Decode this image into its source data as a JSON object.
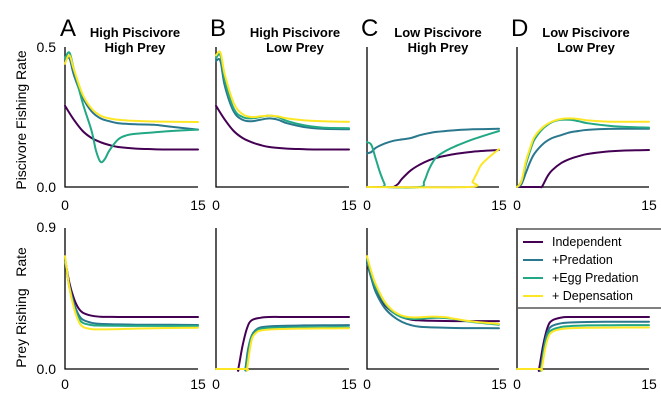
{
  "panels": [
    {
      "letter": "A",
      "title_line1": "High Piscivore",
      "title_line2": "High Prey"
    },
    {
      "letter": "B",
      "title_line1": "High Piscivore",
      "title_line2": "Low Prey"
    },
    {
      "letter": "C",
      "title_line1": "Low Piscivore",
      "title_line2": "High Prey"
    },
    {
      "letter": "D",
      "title_line1": "Low Piscivore",
      "title_line2": "Low Prey"
    }
  ],
  "ylabels": {
    "top": "Piscivore Fishing Rate",
    "bottom_line1": "Rate",
    "bottom_line2": "Prey Rishing"
  },
  "ticks": {
    "x_min": "0",
    "x_max": "15",
    "top_y_max": "0.5",
    "top_y_min": "0.0",
    "bottom_y_max": "0.9",
    "bottom_y_min": "0.0"
  },
  "legend": [
    {
      "label": "Independent",
      "color": "#440154"
    },
    {
      "label": "+Predation",
      "color": "#2a788e"
    },
    {
      "label": "+Egg Predation",
      "color": "#22a884"
    },
    {
      "label": "+ Depensation",
      "color": "#fde725"
    }
  ],
  "chart_data": [
    {
      "type": "line",
      "row": "top",
      "panel": "A",
      "xlim": [
        0,
        15
      ],
      "ylim": [
        0,
        0.5
      ],
      "ylabel": "Piscivore Fishing Rate",
      "series": [
        {
          "name": "Independent",
          "x": [
            0,
            1,
            2,
            3,
            4,
            5,
            6,
            8,
            10,
            12,
            15
          ],
          "y": [
            0.29,
            0.24,
            0.2,
            0.175,
            0.16,
            0.15,
            0.143,
            0.137,
            0.135,
            0.134,
            0.134
          ]
        },
        {
          "name": "+Predation",
          "x": [
            0,
            0.5,
            1,
            2,
            3,
            4,
            5,
            6,
            8,
            10,
            12,
            15
          ],
          "y": [
            0.45,
            0.46,
            0.4,
            0.32,
            0.27,
            0.245,
            0.235,
            0.228,
            0.224,
            0.222,
            0.215,
            0.205
          ]
        },
        {
          "name": "+Egg Predation",
          "x": [
            0,
            0.5,
            1,
            2,
            3,
            3.5,
            4,
            4.5,
            5,
            6,
            7,
            8,
            10,
            12,
            15
          ],
          "y": [
            0.46,
            0.48,
            0.42,
            0.3,
            0.2,
            0.13,
            0.09,
            0.1,
            0.13,
            0.17,
            0.185,
            0.19,
            0.195,
            0.2,
            0.205
          ]
        },
        {
          "name": "+ Depensation",
          "x": [
            0,
            0.5,
            1,
            2,
            3,
            4,
            5,
            6,
            8,
            10,
            12,
            15
          ],
          "y": [
            0.44,
            0.47,
            0.42,
            0.33,
            0.28,
            0.255,
            0.245,
            0.24,
            0.236,
            0.234,
            0.233,
            0.232
          ]
        }
      ]
    },
    {
      "type": "line",
      "row": "top",
      "panel": "B",
      "xlim": [
        0,
        15
      ],
      "ylim": [
        0,
        0.5
      ],
      "series": [
        {
          "name": "Independent",
          "x": [
            0,
            1,
            2,
            3,
            4,
            5,
            6,
            8,
            10,
            12,
            15
          ],
          "y": [
            0.29,
            0.24,
            0.2,
            0.175,
            0.16,
            0.15,
            0.143,
            0.137,
            0.135,
            0.134,
            0.134
          ]
        },
        {
          "name": "+Predation",
          "x": [
            0,
            0.5,
            1,
            2,
            3,
            4,
            5,
            6,
            7,
            8,
            10,
            12,
            15
          ],
          "y": [
            0.45,
            0.45,
            0.36,
            0.27,
            0.24,
            0.235,
            0.24,
            0.245,
            0.24,
            0.228,
            0.214,
            0.208,
            0.206
          ]
        },
        {
          "name": "+Egg Predation",
          "x": [
            0,
            0.5,
            1,
            2,
            3,
            4,
            5,
            6,
            7,
            8,
            10,
            12,
            15
          ],
          "y": [
            0.46,
            0.47,
            0.38,
            0.28,
            0.25,
            0.245,
            0.25,
            0.255,
            0.25,
            0.236,
            0.22,
            0.212,
            0.21
          ]
        },
        {
          "name": "+ Depensation",
          "x": [
            0,
            0.5,
            1,
            2,
            3,
            4,
            5,
            6,
            7,
            8,
            10,
            12,
            15
          ],
          "y": [
            0.47,
            0.48,
            0.4,
            0.3,
            0.26,
            0.25,
            0.252,
            0.255,
            0.252,
            0.245,
            0.238,
            0.235,
            0.233
          ]
        }
      ]
    },
    {
      "type": "line",
      "row": "top",
      "panel": "C",
      "xlim": [
        0,
        15
      ],
      "ylim": [
        0,
        0.5
      ],
      "series": [
        {
          "name": "Independent",
          "x": [
            0,
            2.8,
            3,
            3.5,
            4,
            5,
            6,
            7,
            8,
            9,
            10,
            12,
            15
          ],
          "y": [
            0,
            0,
            0,
            0.01,
            0.03,
            0.06,
            0.08,
            0.095,
            0.105,
            0.112,
            0.118,
            0.126,
            0.132
          ]
        },
        {
          "name": "+Predation",
          "x": [
            0,
            0.5,
            1,
            2,
            3,
            4,
            5,
            6,
            7,
            8,
            10,
            12,
            15
          ],
          "y": [
            0.12,
            0.125,
            0.14,
            0.155,
            0.165,
            0.17,
            0.175,
            0.185,
            0.192,
            0.197,
            0.203,
            0.206,
            0.208
          ]
        },
        {
          "name": "+Egg Predation",
          "x": [
            0,
            0.5,
            1,
            1.5,
            2,
            2.2,
            6,
            6.5,
            7,
            7.5,
            8,
            9,
            10,
            12,
            15
          ],
          "y": [
            0.16,
            0.15,
            0.1,
            0.05,
            0.01,
            0,
            0,
            0.02,
            0.06,
            0.09,
            0.11,
            0.13,
            0.145,
            0.17,
            0.2
          ]
        },
        {
          "name": "+ Depensation",
          "x": [
            0,
            11.5,
            12,
            12.5,
            13,
            14,
            15
          ],
          "y": [
            0,
            0,
            0.02,
            0.05,
            0.08,
            0.11,
            0.135
          ]
        }
      ]
    },
    {
      "type": "line",
      "row": "top",
      "panel": "D",
      "xlim": [
        0,
        15
      ],
      "ylim": [
        0,
        0.5
      ],
      "series": [
        {
          "name": "Independent",
          "x": [
            0,
            2.5,
            2.8,
            3,
            3.5,
            4,
            5,
            6,
            7,
            8,
            10,
            12,
            15
          ],
          "y": [
            0,
            0,
            0,
            0.01,
            0.04,
            0.06,
            0.085,
            0.1,
            0.11,
            0.118,
            0.126,
            0.13,
            0.132
          ]
        },
        {
          "name": "+Predation",
          "x": [
            0,
            0.5,
            1,
            1.5,
            2,
            3,
            4,
            5,
            6,
            7,
            8,
            10,
            12,
            15
          ],
          "y": [
            0,
            0.01,
            0.05,
            0.09,
            0.12,
            0.155,
            0.175,
            0.185,
            0.195,
            0.2,
            0.204,
            0.207,
            0.208,
            0.208
          ]
        },
        {
          "name": "+Egg Predation",
          "x": [
            0,
            0.5,
            1,
            1.5,
            2,
            3,
            4,
            5,
            6,
            7,
            8,
            10,
            12,
            15
          ],
          "y": [
            0,
            0.02,
            0.08,
            0.13,
            0.17,
            0.21,
            0.232,
            0.24,
            0.24,
            0.235,
            0.228,
            0.22,
            0.215,
            0.212
          ]
        },
        {
          "name": "+ Depensation",
          "x": [
            0,
            0.5,
            1,
            1.5,
            2,
            3,
            4,
            5,
            6,
            7,
            8,
            10,
            12,
            15
          ],
          "y": [
            0,
            0.02,
            0.09,
            0.14,
            0.18,
            0.215,
            0.234,
            0.243,
            0.245,
            0.243,
            0.238,
            0.234,
            0.233,
            0.233
          ]
        }
      ]
    },
    {
      "type": "line",
      "row": "bottom",
      "panel": "A",
      "xlim": [
        0,
        15
      ],
      "ylim": [
        0,
        0.9
      ],
      "ylabel": "Prey Rishing Rate",
      "series": [
        {
          "name": "Independent",
          "x": [
            0,
            0.5,
            1,
            1.5,
            2,
            3,
            4,
            6,
            8,
            10,
            12,
            15
          ],
          "y": [
            0.7,
            0.55,
            0.45,
            0.39,
            0.36,
            0.34,
            0.334,
            0.332,
            0.332,
            0.332,
            0.332,
            0.332
          ]
        },
        {
          "name": "+Predation",
          "x": [
            0,
            0.5,
            1,
            1.5,
            2,
            3,
            4,
            6,
            8,
            10,
            12,
            15
          ],
          "y": [
            0.7,
            0.53,
            0.42,
            0.35,
            0.315,
            0.295,
            0.288,
            0.285,
            0.283,
            0.282,
            0.282,
            0.281
          ]
        },
        {
          "name": "+Egg Predation",
          "x": [
            0,
            0.5,
            1,
            1.5,
            2,
            3,
            4,
            6,
            8,
            10,
            12,
            15
          ],
          "y": [
            0.71,
            0.52,
            0.4,
            0.33,
            0.295,
            0.28,
            0.277,
            0.276,
            0.275,
            0.275,
            0.275,
            0.275
          ]
        },
        {
          "name": "+ Depensation",
          "x": [
            0,
            0.5,
            1,
            1.5,
            2,
            3,
            4,
            6,
            8,
            10,
            12,
            15
          ],
          "y": [
            0.72,
            0.52,
            0.39,
            0.31,
            0.27,
            0.255,
            0.253,
            0.255,
            0.258,
            0.26,
            0.262,
            0.263
          ]
        }
      ]
    },
    {
      "type": "line",
      "row": "bottom",
      "panel": "B",
      "xlim": [
        0,
        15
      ],
      "ylim": [
        0,
        0.9
      ],
      "series": [
        {
          "name": "Independent",
          "x": [
            0,
            2.3,
            2.5,
            3,
            3.5,
            4,
            5,
            6,
            8,
            10,
            12,
            15
          ],
          "y": [
            0,
            0,
            0,
            0.15,
            0.26,
            0.31,
            0.327,
            0.332,
            0.332,
            0.332,
            0.332,
            0.332
          ]
        },
        {
          "name": "+Predation",
          "x": [
            0,
            3.1,
            3.3,
            3.6,
            4,
            4.5,
            5,
            6,
            8,
            10,
            12,
            15
          ],
          "y": [
            0,
            0,
            0,
            0.12,
            0.21,
            0.25,
            0.265,
            0.272,
            0.276,
            0.278,
            0.279,
            0.28
          ]
        },
        {
          "name": "+Egg Predation",
          "x": [
            0,
            3.2,
            3.4,
            3.7,
            4,
            4.5,
            5,
            6,
            8,
            10,
            12,
            15
          ],
          "y": [
            0,
            0,
            0,
            0.12,
            0.2,
            0.24,
            0.255,
            0.262,
            0.265,
            0.266,
            0.267,
            0.267
          ]
        },
        {
          "name": "+ Depensation",
          "x": [
            0,
            3.3,
            3.5,
            3.8,
            4.1,
            4.6,
            5,
            6,
            8,
            10,
            12,
            15
          ],
          "y": [
            0,
            0,
            0,
            0.12,
            0.2,
            0.235,
            0.245,
            0.252,
            0.256,
            0.258,
            0.259,
            0.26
          ]
        }
      ]
    },
    {
      "type": "line",
      "row": "bottom",
      "panel": "C",
      "xlim": [
        0,
        15
      ],
      "ylim": [
        0,
        0.9
      ],
      "series": [
        {
          "name": "Independent",
          "x": [
            0,
            0.5,
            1,
            2,
            3,
            4,
            5,
            6,
            7,
            8,
            10,
            12,
            15
          ],
          "y": [
            0.68,
            0.58,
            0.5,
            0.41,
            0.36,
            0.33,
            0.315,
            0.31,
            0.308,
            0.307,
            0.306,
            0.306,
            0.306
          ]
        },
        {
          "name": "+Predation",
          "x": [
            0,
            0.5,
            1,
            2,
            3,
            4,
            5,
            6,
            8,
            10,
            12,
            15
          ],
          "y": [
            0.69,
            0.58,
            0.49,
            0.39,
            0.335,
            0.3,
            0.28,
            0.27,
            0.265,
            0.262,
            0.261,
            0.26
          ]
        },
        {
          "name": "+Egg Predation",
          "x": [
            0,
            0.5,
            1,
            2,
            3,
            4,
            5,
            6,
            7,
            8,
            9,
            10,
            12,
            15
          ],
          "y": [
            0.7,
            0.6,
            0.52,
            0.42,
            0.36,
            0.33,
            0.32,
            0.32,
            0.325,
            0.327,
            0.325,
            0.318,
            0.3,
            0.283
          ]
        },
        {
          "name": "+ Depensation",
          "x": [
            0,
            0.5,
            1,
            2,
            3,
            4,
            5,
            6,
            7,
            8,
            9,
            10,
            12,
            15
          ],
          "y": [
            0.72,
            0.62,
            0.54,
            0.43,
            0.37,
            0.34,
            0.33,
            0.33,
            0.334,
            0.334,
            0.33,
            0.32,
            0.303,
            0.288
          ]
        }
      ]
    },
    {
      "type": "line",
      "row": "bottom",
      "panel": "D",
      "xlim": [
        0,
        15
      ],
      "ylim": [
        0,
        0.9
      ],
      "series": [
        {
          "name": "Independent",
          "x": [
            0,
            2.3,
            2.5,
            3,
            3.5,
            4,
            5,
            6,
            8,
            10,
            12,
            15
          ],
          "y": [
            0,
            0,
            0,
            0.16,
            0.27,
            0.31,
            0.328,
            0.332,
            0.332,
            0.332,
            0.332,
            0.332
          ]
        },
        {
          "name": "+Predation",
          "x": [
            0,
            2.5,
            2.7,
            3.1,
            3.5,
            4,
            5,
            6,
            8,
            10,
            12,
            15
          ],
          "y": [
            0,
            0,
            0,
            0.15,
            0.24,
            0.275,
            0.292,
            0.297,
            0.3,
            0.301,
            0.302,
            0.302
          ]
        },
        {
          "name": "+Egg Predation",
          "x": [
            0,
            2.5,
            2.7,
            3.1,
            3.5,
            4,
            5,
            6,
            8,
            10,
            12,
            15
          ],
          "y": [
            0,
            0,
            0,
            0.14,
            0.22,
            0.25,
            0.268,
            0.274,
            0.278,
            0.279,
            0.28,
            0.28
          ]
        },
        {
          "name": "+ Depensation",
          "x": [
            0,
            2.6,
            2.8,
            3.2,
            3.6,
            4.1,
            5,
            6,
            8,
            10,
            12,
            15
          ],
          "y": [
            0,
            0,
            0,
            0.13,
            0.21,
            0.24,
            0.255,
            0.26,
            0.263,
            0.264,
            0.265,
            0.265
          ]
        }
      ]
    }
  ]
}
